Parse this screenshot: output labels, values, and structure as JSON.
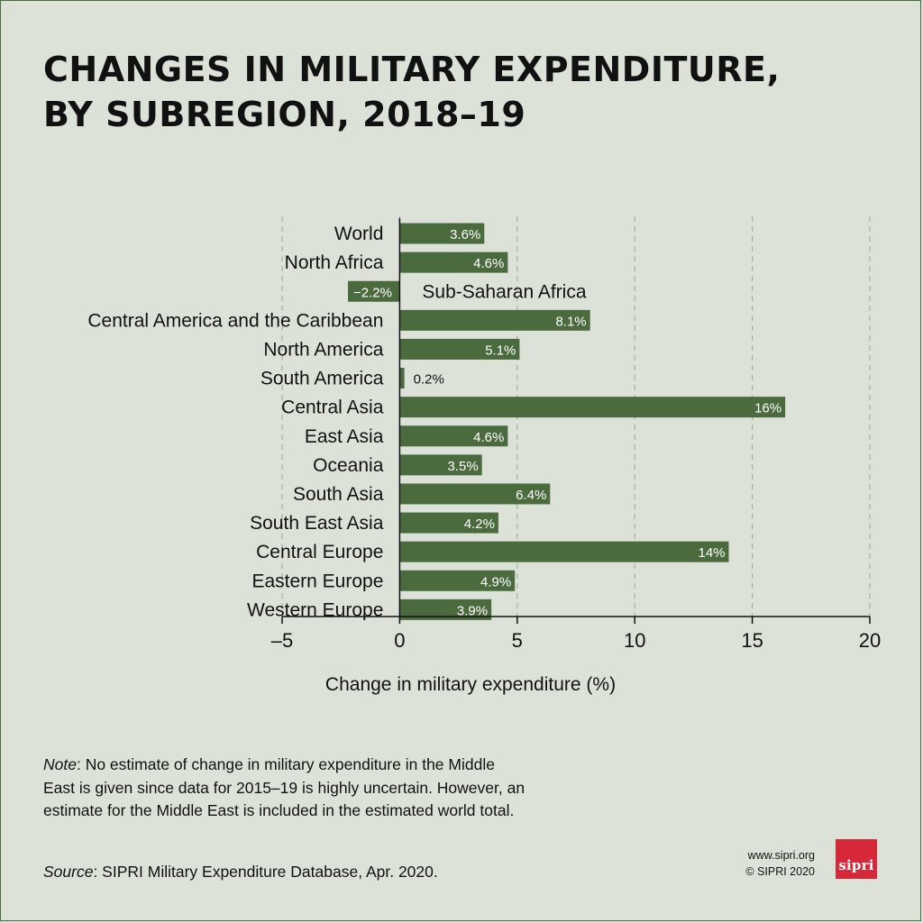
{
  "header": {
    "title_line1": "CHANGES IN MILITARY EXPENDITURE,",
    "title_line2": "BY SUBREGION, 2018–19"
  },
  "chart_data": {
    "type": "bar",
    "orientation": "horizontal",
    "categories": [
      "World",
      "North Africa",
      "Sub-Saharan Africa",
      "Central America and the Caribbean",
      "North America",
      "South America",
      "Central Asia",
      "East Asia",
      "Oceania",
      "South Asia",
      "South East Asia",
      "Central Europe",
      "Eastern Europe",
      "Western Europe"
    ],
    "values": [
      3.6,
      4.6,
      -2.2,
      8.1,
      5.1,
      0.2,
      16.4,
      4.6,
      3.5,
      6.4,
      4.2,
      14,
      4.9,
      3.9
    ],
    "value_labels": [
      "3.6%",
      "4.6%",
      "−2.2%",
      "8.1%",
      "5.1%",
      "0.2%",
      "16%",
      "4.6%",
      "3.5%",
      "6.4%",
      "4.2%",
      "14%",
      "4.9%",
      "3.9%"
    ],
    "xlabel": "Change in military expenditure (%)",
    "xlim": [
      -5,
      20
    ],
    "xticks": [
      -5,
      0,
      5,
      10,
      15,
      20
    ],
    "xtick_labels": [
      "–5",
      "0",
      "5",
      "10",
      "15",
      "20"
    ],
    "grid": "vertical dashed",
    "bar_color": "#4b6b3f"
  },
  "footer": {
    "note_label": "Note",
    "note_text": ": No estimate of change in military expenditure in the Middle East is given since data for 2015–19 is highly uncertain. However, an estimate for the Middle East is included in the estimated world total.",
    "source_label": "Source",
    "source_text": ": SIPRI Military Expenditure Database, Apr. 2020.",
    "website": "www.sipri.org",
    "copyright": "© SIPRI 2020",
    "logo_text": "sipri"
  }
}
